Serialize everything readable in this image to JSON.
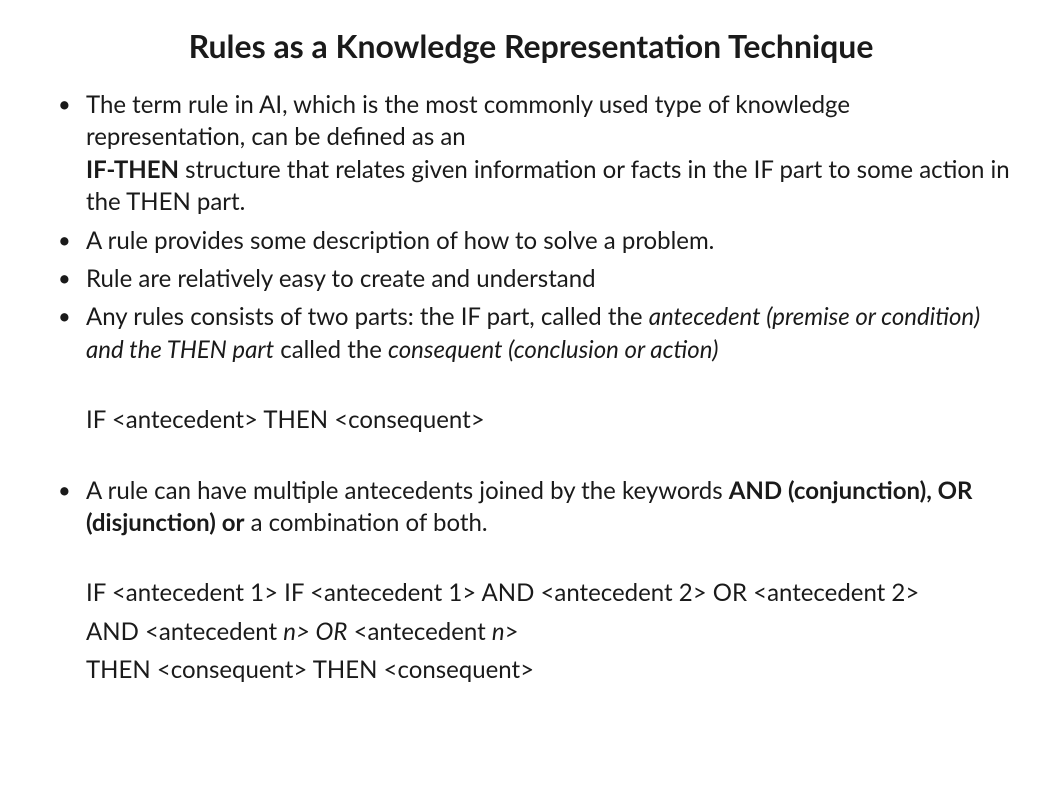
{
  "title": "Rules as a Knowledge Representation Technique",
  "bullets": {
    "b1_p1": "The term rule in AI, which is the most commonly used type of knowledge representation, can be defined as an",
    "b1_p2_bold": "IF-THEN",
    "b1_p2_rest": " structure that relates given information or facts in the IF part to some action in the THEN part.",
    "b2": "A rule provides some description of how to solve a problem.",
    "b3": "Rule are relatively easy to create and understand",
    "b4_p1": " Any rules consists of two parts: the IF part, called the ",
    "b4_italic1": "antecedent (premise or condition) and the THEN part",
    "b4_mid": " called the ",
    "b4_italic2": "consequent (conclusion or action)",
    "syntax1": "IF  <antecedent>  THEN  <consequent>",
    "b5_p1": "A rule can have multiple antecedents joined by the keywords ",
    "b5_bold": "AND (conjunction), OR (disjunction) or",
    "b5_p2": " a combination of both.",
    "syntax2_l1": "IF  <antecedent 1> IF  <antecedent 1> AND  <antecedent 2> OR  <antecedent 2>",
    "syntax2_l2_a": "AND  <antecedent ",
    "syntax2_l2_n1": "n",
    "syntax2_l2_b": "> OR",
    "syntax2_l2_c": "  <antecedent ",
    "syntax2_l2_n2": "n",
    "syntax2_l2_d": ">",
    "syntax2_l3": "THEN <consequent> THEN <consequent>"
  }
}
